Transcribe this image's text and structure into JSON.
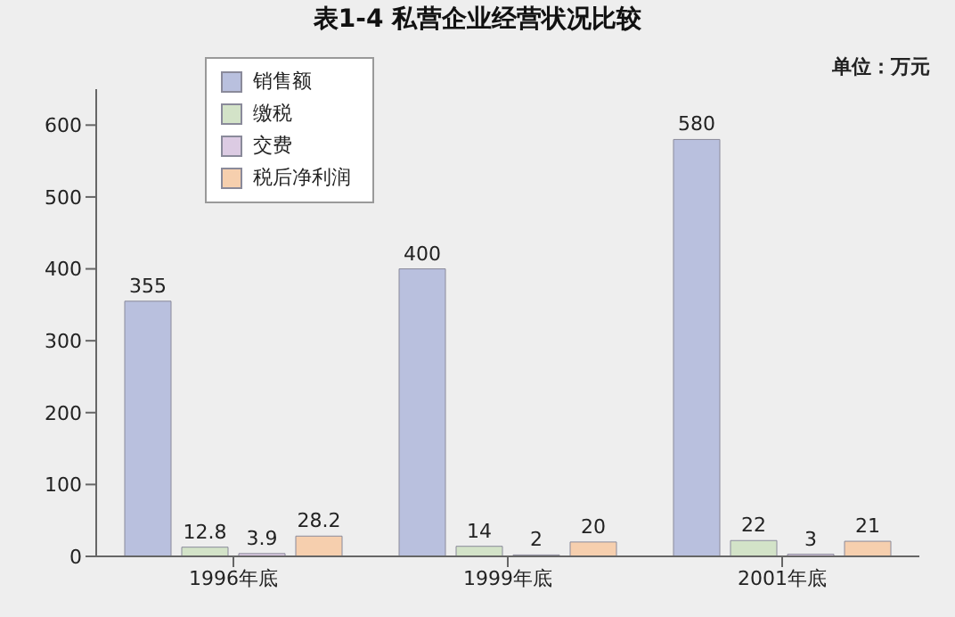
{
  "chart_data": {
    "type": "bar",
    "title": "表1-4  私营企业经营状况比较",
    "annotations": [
      "单位：万元"
    ],
    "categories": [
      "1996年底",
      "1999年底",
      "2001年底"
    ],
    "series": [
      {
        "name": "销售额",
        "color": "#b9c0de",
        "values": [
          355,
          400,
          580
        ]
      },
      {
        "name": "缴税",
        "color": "#d3e3c8",
        "values": [
          12.8,
          14,
          22
        ]
      },
      {
        "name": "交费",
        "color": "#dccbe3",
        "values": [
          3.9,
          2,
          3
        ]
      },
      {
        "name": "税后净利润",
        "color": "#f6cfae",
        "values": [
          28.2,
          20,
          21
        ]
      }
    ],
    "ylim": [
      0,
      650
    ],
    "yticks": [
      0,
      100,
      200,
      300,
      400,
      500,
      600
    ],
    "grid": false,
    "legend": "top left",
    "data_labels": true
  }
}
